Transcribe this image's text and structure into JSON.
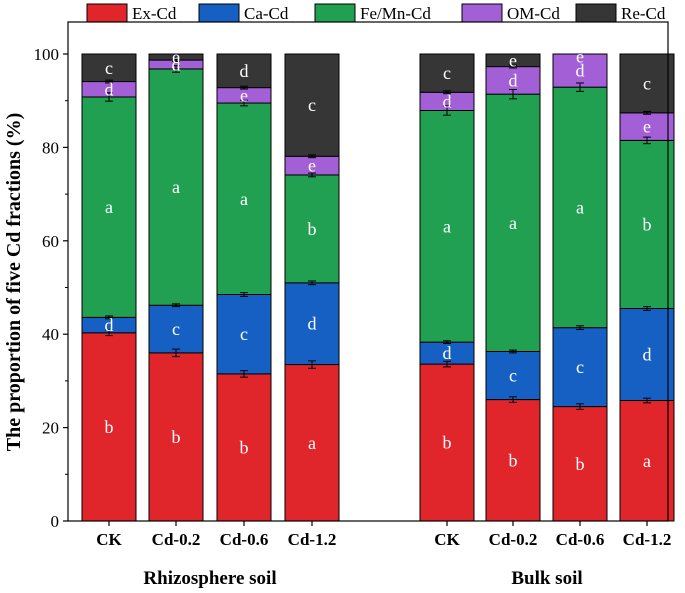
{
  "chart_data": {
    "type": "bar",
    "stacked": true,
    "ylabel": "The proportion of five Cd fractions (%)",
    "xlabel": "",
    "title": "",
    "ylim": [
      0,
      100
    ],
    "yticks": [
      0,
      20,
      40,
      60,
      80,
      100
    ],
    "legend_placement": "top",
    "groups": [
      {
        "label": "Rhizosphere soil",
        "categories": [
          "CK",
          "Cd-0.2",
          "Cd-0.6",
          "Cd-1.2"
        ]
      },
      {
        "label": "Bulk soil",
        "categories": [
          "CK",
          "Cd-0.2",
          "Cd-0.6",
          "Cd-1.2"
        ]
      }
    ],
    "categories": [
      "CK",
      "Cd-0.2",
      "Cd-0.6",
      "Cd-1.2",
      "CK",
      "Cd-0.2",
      "Cd-0.6",
      "Cd-1.2"
    ],
    "series": [
      {
        "name": "Ex-Cd",
        "color": "#e0262b",
        "values": [
          40.3,
          36.0,
          31.5,
          33.5,
          33.6,
          26.0,
          24.5,
          25.8
        ],
        "errors": [
          0.6,
          0.8,
          0.7,
          0.8,
          0.6,
          0.6,
          0.6,
          0.5
        ],
        "letters": [
          "b",
          "b",
          "b",
          "a",
          "b",
          "b",
          "b",
          "a"
        ]
      },
      {
        "name": "Ca-Cd",
        "color": "#1660c4",
        "values": [
          3.3,
          10.2,
          17.0,
          17.5,
          4.7,
          10.3,
          16.9,
          19.7
        ],
        "errors": [
          0.3,
          0.3,
          0.4,
          0.4,
          0.3,
          0.3,
          0.4,
          0.4
        ],
        "letters": [
          "d",
          "c",
          "c",
          "d",
          "d",
          "c",
          "c",
          "d"
        ]
      },
      {
        "name": "Fe/Mn-Cd",
        "color": "#22a052",
        "values": [
          47.2,
          50.6,
          41.0,
          23.1,
          49.6,
          55.1,
          51.5,
          36.0
        ],
        "errors": [
          0.9,
          0.7,
          0.6,
          0.4,
          1.0,
          1.0,
          0.9,
          0.7
        ],
        "letters": [
          "a",
          "a",
          "a",
          "b",
          "a",
          "a",
          "a",
          "b"
        ]
      },
      {
        "name": "OM-Cd",
        "color": "#a35fd6",
        "values": [
          3.3,
          1.9,
          3.3,
          4.0,
          3.9,
          5.9,
          7.1,
          5.9
        ],
        "errors": [
          0.3,
          0.3,
          0.3,
          0.3,
          0.3,
          0.3,
          0.3,
          0.3
        ],
        "letters": [
          "d",
          "d",
          "e",
          "e",
          "d",
          "d",
          "d",
          "e"
        ]
      },
      {
        "name": "Re-Cd",
        "color": "#363636",
        "values": [
          5.9,
          1.3,
          7.2,
          21.9,
          8.2,
          2.7,
          0.0,
          12.6
        ],
        "errors": [
          0.2,
          0.2,
          0.2,
          0.4,
          0.2,
          0.2,
          0.2,
          0.3
        ],
        "letters": [
          "c",
          "e",
          "d",
          "c",
          "c",
          "e",
          "e",
          "c"
        ]
      }
    ]
  }
}
